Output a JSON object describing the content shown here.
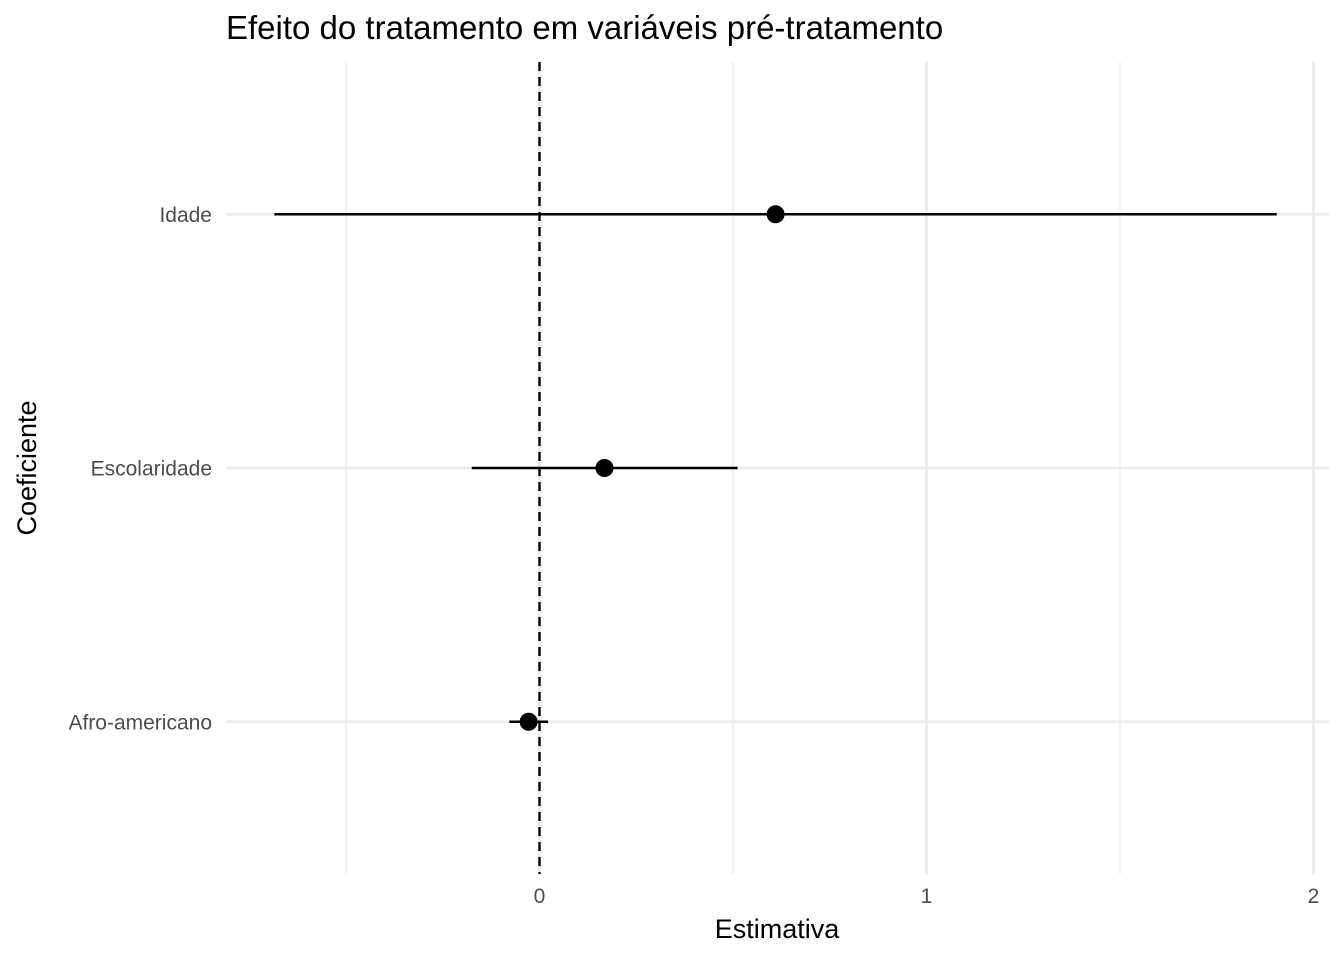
{
  "chart_data": {
    "type": "scatter",
    "subtype": "coefficient-plot",
    "title": "Efeito do tratamento em variáveis pré-tratamento",
    "xlabel": "Estimativa",
    "ylabel": "Coeficiente",
    "xlim": [
      -0.81,
      2.04
    ],
    "x_ticks": [
      0,
      1,
      2
    ],
    "x_tick_labels": [
      "0",
      "1",
      "2"
    ],
    "reference_line": {
      "x": 0,
      "style": "dashed"
    },
    "grid": true,
    "categories": [
      "Idade",
      "Escolaridade",
      "Afro-americano"
    ],
    "points": [
      {
        "label": "Idade",
        "estimate": 0.61,
        "low": -0.685,
        "high": 1.905
      },
      {
        "label": "Escolaridade",
        "estimate": 0.168,
        "low": -0.175,
        "high": 0.512
      },
      {
        "label": "Afro-americano",
        "estimate": -0.028,
        "low": -0.078,
        "high": 0.022
      }
    ],
    "colors": {
      "points": "#000000",
      "grid": "#ebebeb",
      "tick_text": "#4d4d4d"
    }
  }
}
